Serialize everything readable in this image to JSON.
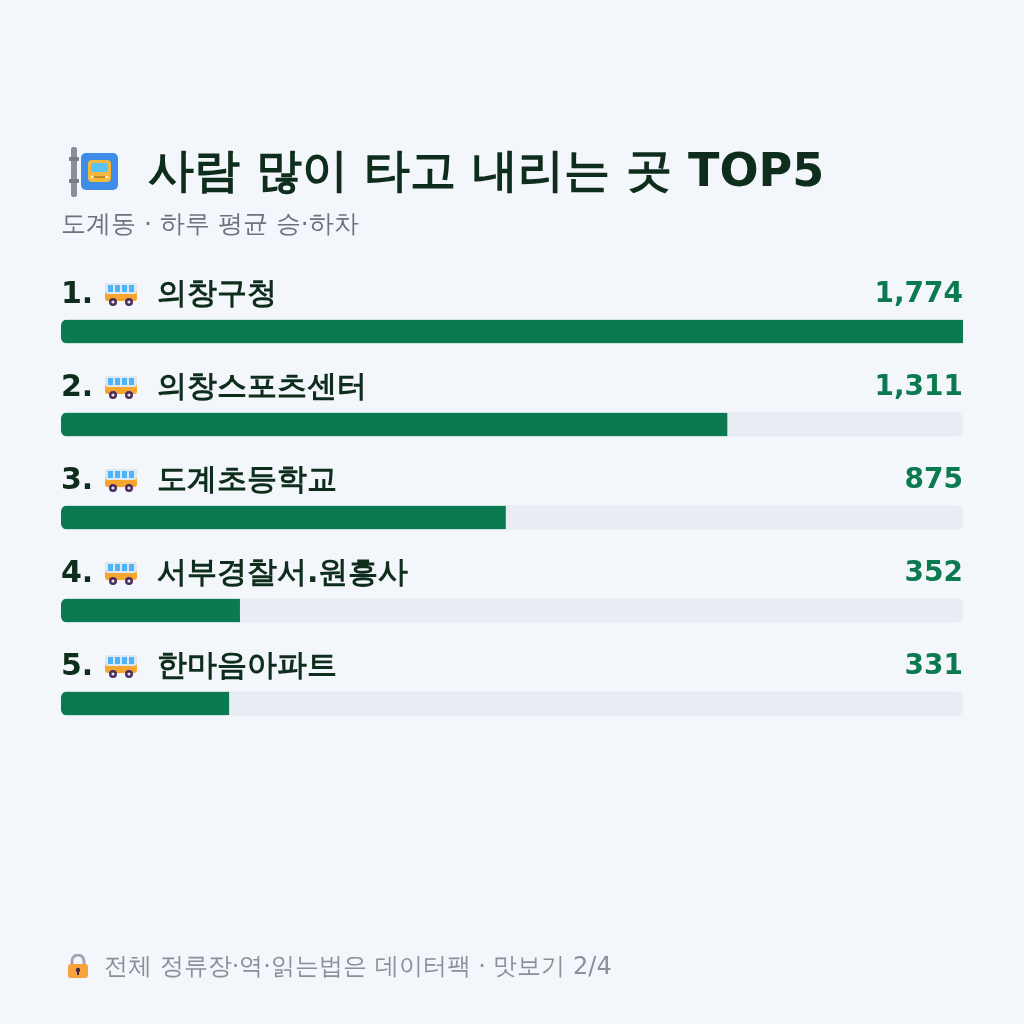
{
  "chart_data": {
    "type": "bar",
    "orientation": "horizontal",
    "title": "사람 많이 타고 내리는 곳 TOP5",
    "subtitle": "도계동 · 하루 평균 승·하차",
    "categories": [
      "1. 의창구청",
      "2. 의창스포츠센터",
      "3. 도계초등학교",
      "4. 서부경찰서.원흥사",
      "5. 한마음아파트"
    ],
    "values": [
      1774,
      1311,
      875,
      352,
      331
    ],
    "color": "#0b7a50",
    "value_labels": [
      "1,774",
      "1,311",
      "875",
      "352",
      "331"
    ],
    "annotations": [
      "전체 정류장·역·읽는법은 데이터팩 · 맛보기 2/4"
    ]
  }
}
